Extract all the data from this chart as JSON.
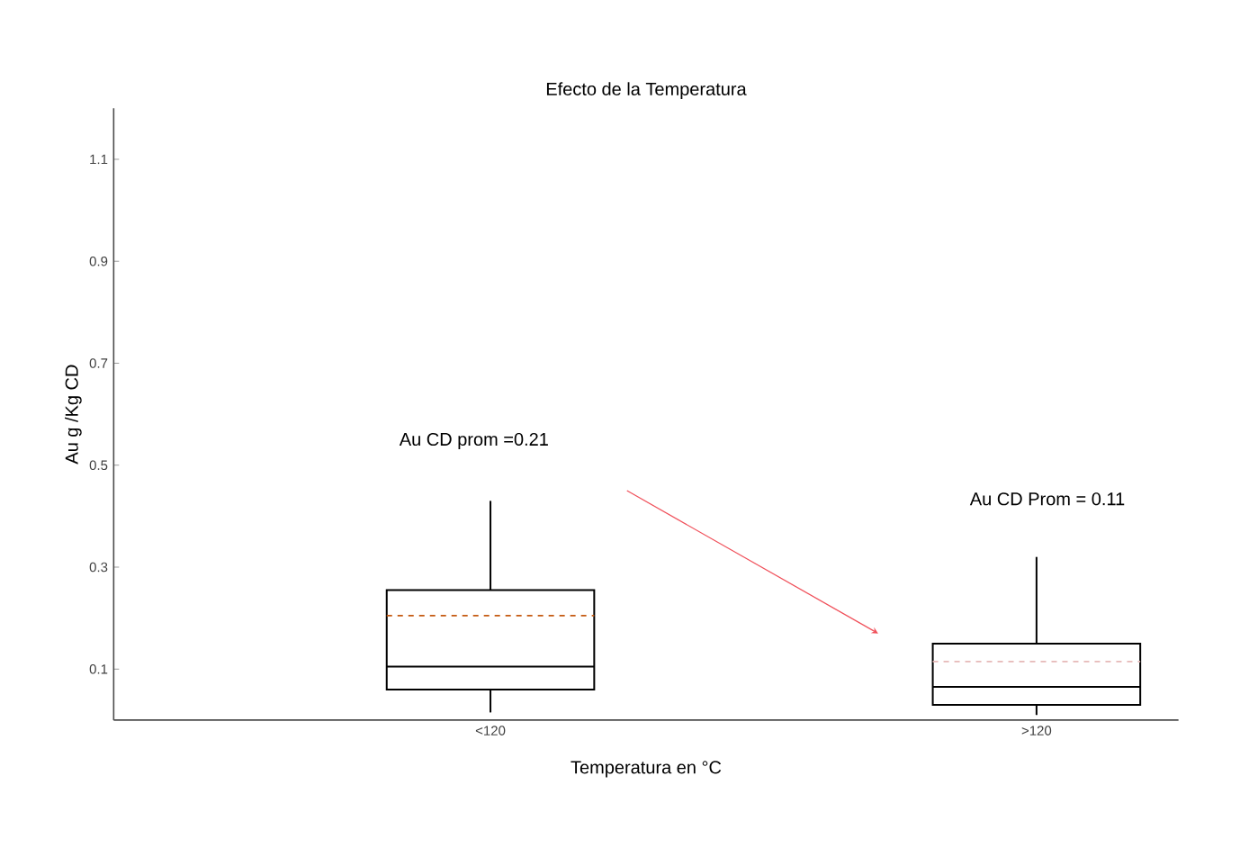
{
  "chart_data": {
    "type": "box",
    "title": "Efecto de la Temperatura",
    "xlabel": "Temperatura en °C",
    "ylabel": "Au g /Kg CD",
    "categories": [
      "<120",
      ">120"
    ],
    "boxes": [
      {
        "low": 0.015,
        "q1": 0.06,
        "median": 0.105,
        "q3": 0.255,
        "high": 0.43,
        "mean": 0.205
      },
      {
        "low": 0.01,
        "q1": 0.03,
        "median": 0.065,
        "q3": 0.15,
        "high": 0.32,
        "mean": 0.115
      }
    ],
    "ylim": [
      0,
      1.2
    ],
    "yticks": [
      0.1,
      0.3,
      0.5,
      0.7,
      0.9,
      1.1
    ],
    "annotations": [
      "Au CD prom =0.21",
      "Au CD Prom = 0.11"
    ],
    "grid": false
  }
}
